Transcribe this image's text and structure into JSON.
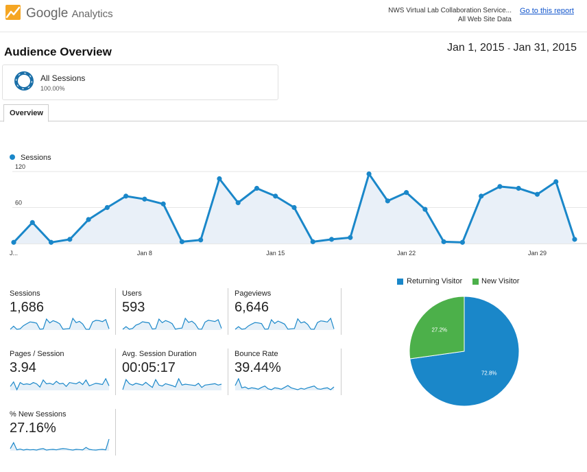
{
  "header": {
    "brand_google": "Google",
    "brand_product": "Analytics",
    "property_name": "NWS Virtual Lab Collaboration Service...",
    "view_name": "All Web Site Data",
    "go_to_report": "Go to this report"
  },
  "page": {
    "title": "Audience Overview",
    "date_start": "Jan 1, 2015",
    "date_sep": "-",
    "date_end": "Jan 31, 2015"
  },
  "segment": {
    "name": "All Sessions",
    "percent": "100.00%"
  },
  "tabs": [
    {
      "label": "Overview",
      "active": true
    }
  ],
  "chart_data": [
    {
      "type": "area",
      "legend": "Sessions",
      "color": "#1a87c9",
      "fill": "#e9f0f8",
      "x_tick_labels": [
        "J...",
        "Jan 8",
        "Jan 15",
        "Jan 22",
        "Jan 29"
      ],
      "y_tick_labels": [
        "120",
        "60"
      ],
      "ylim": [
        0,
        120
      ],
      "x": [
        1,
        2,
        3,
        4,
        5,
        6,
        7,
        8,
        9,
        10,
        11,
        12,
        13,
        14,
        15,
        16,
        17,
        18,
        19,
        20,
        21,
        22,
        23,
        24,
        25,
        26,
        27,
        28,
        29,
        30,
        31
      ],
      "values": [
        2,
        35,
        2,
        7,
        40,
        60,
        79,
        74,
        66,
        3,
        6,
        108,
        68,
        92,
        79,
        60,
        3,
        7,
        10,
        116,
        71,
        85,
        57,
        3,
        2,
        79,
        95,
        92,
        82,
        103,
        7
      ]
    },
    {
      "type": "pie",
      "labels": [
        "Returning Visitor",
        "New Visitor"
      ],
      "values": [
        72.8,
        27.2
      ],
      "value_labels": [
        "72.8%",
        "27.2%"
      ],
      "colors": [
        "#1a87c9",
        "#4cb04a"
      ]
    }
  ],
  "metrics": [
    {
      "label": "Sessions",
      "value": "1,686",
      "spark": [
        2,
        35,
        2,
        7,
        40,
        60,
        79,
        74,
        66,
        3,
        6,
        108,
        68,
        92,
        79,
        60,
        3,
        7,
        10,
        116,
        71,
        85,
        57,
        3,
        2,
        79,
        95,
        92,
        82,
        103,
        7
      ]
    },
    {
      "label": "Users",
      "value": "593",
      "spark": [
        2,
        20,
        3,
        8,
        30,
        38,
        52,
        48,
        45,
        4,
        6,
        70,
        46,
        60,
        52,
        40,
        3,
        8,
        10,
        75,
        48,
        56,
        38,
        4,
        3,
        50,
        62,
        58,
        54,
        66,
        8
      ]
    },
    {
      "label": "Pageviews",
      "value": "6,646",
      "spark": [
        5,
        120,
        8,
        30,
        150,
        230,
        300,
        280,
        250,
        10,
        20,
        420,
        260,
        360,
        300,
        230,
        10,
        25,
        40,
        460,
        280,
        330,
        220,
        10,
        8,
        300,
        370,
        350,
        320,
        480,
        20
      ]
    },
    {
      "label": "Pages / Session",
      "value": "3.94",
      "spark": [
        3.5,
        4.2,
        3.0,
        4.1,
        3.8,
        3.9,
        3.8,
        4.1,
        3.9,
        3.4,
        4.5,
        3.9,
        4.0,
        3.8,
        4.3,
        3.9,
        4.0,
        3.5,
        4.1,
        4.0,
        3.9,
        4.2,
        3.8,
        4.5,
        3.6,
        3.8,
        4.0,
        3.9,
        3.8,
        4.7,
        3.6
      ]
    },
    {
      "label": "Avg. Session Duration",
      "value": "00:05:17",
      "spark": [
        200,
        420,
        330,
        300,
        340,
        320,
        300,
        360,
        300,
        250,
        420,
        300,
        280,
        330,
        310,
        290,
        260,
        440,
        300,
        320,
        310,
        300,
        290,
        340,
        250,
        300,
        310,
        320,
        330,
        300,
        320
      ]
    },
    {
      "label": "Bounce Rate",
      "value": "39.44%",
      "spark": [
        45,
        60,
        40,
        42,
        38,
        40,
        39,
        37,
        41,
        44,
        38,
        36,
        40,
        39,
        37,
        41,
        45,
        40,
        38,
        36,
        39,
        37,
        40,
        42,
        44,
        38,
        37,
        39,
        40,
        36,
        42
      ]
    },
    {
      "label": "% New Sessions",
      "value": "27.16%",
      "spark": [
        30,
        55,
        25,
        28,
        24,
        27,
        25,
        26,
        24,
        28,
        30,
        24,
        26,
        27,
        25,
        28,
        30,
        29,
        26,
        24,
        27,
        26,
        25,
        35,
        27,
        25,
        24,
        26,
        27,
        25,
        70
      ]
    }
  ]
}
